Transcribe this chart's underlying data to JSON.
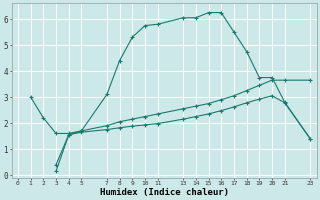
{
  "xlabel": "Humidex (Indice chaleur)",
  "bg_color": "#cce8e8",
  "grid_color": "#ffffff",
  "line_color": "#1a7a6e",
  "xlim": [
    -0.5,
    23.5
  ],
  "ylim": [
    -0.1,
    6.6
  ],
  "xticks": [
    0,
    1,
    2,
    3,
    4,
    5,
    7,
    8,
    9,
    10,
    11,
    13,
    14,
    15,
    16,
    17,
    18,
    19,
    20,
    21,
    23
  ],
  "yticks": [
    0,
    1,
    2,
    3,
    4,
    5,
    6
  ],
  "line1_x": [
    1,
    2,
    3,
    4,
    5,
    7,
    8,
    9,
    10,
    11,
    13,
    14,
    15,
    16,
    17,
    18,
    19,
    20,
    21,
    23
  ],
  "line1_y": [
    3.0,
    2.2,
    1.6,
    1.6,
    1.7,
    3.1,
    4.4,
    5.3,
    5.75,
    5.8,
    6.05,
    6.05,
    6.25,
    6.25,
    5.5,
    4.75,
    3.75,
    3.75,
    2.8,
    1.4
  ],
  "line2_x": [
    3,
    4,
    5,
    7,
    8,
    9,
    10,
    11,
    13,
    14,
    15,
    16,
    17,
    18,
    19,
    20,
    21,
    23
  ],
  "line2_y": [
    0.4,
    1.55,
    1.7,
    1.9,
    2.05,
    2.15,
    2.25,
    2.35,
    2.55,
    2.65,
    2.75,
    2.9,
    3.05,
    3.25,
    3.45,
    3.65,
    3.65,
    3.65
  ],
  "line3_x": [
    3,
    4,
    5,
    7,
    8,
    9,
    10,
    11,
    13,
    14,
    15,
    16,
    17,
    18,
    19,
    20,
    21,
    23
  ],
  "line3_y": [
    0.15,
    1.55,
    1.65,
    1.75,
    1.82,
    1.88,
    1.93,
    1.98,
    2.15,
    2.25,
    2.35,
    2.48,
    2.62,
    2.78,
    2.92,
    3.05,
    2.78,
    1.4
  ]
}
